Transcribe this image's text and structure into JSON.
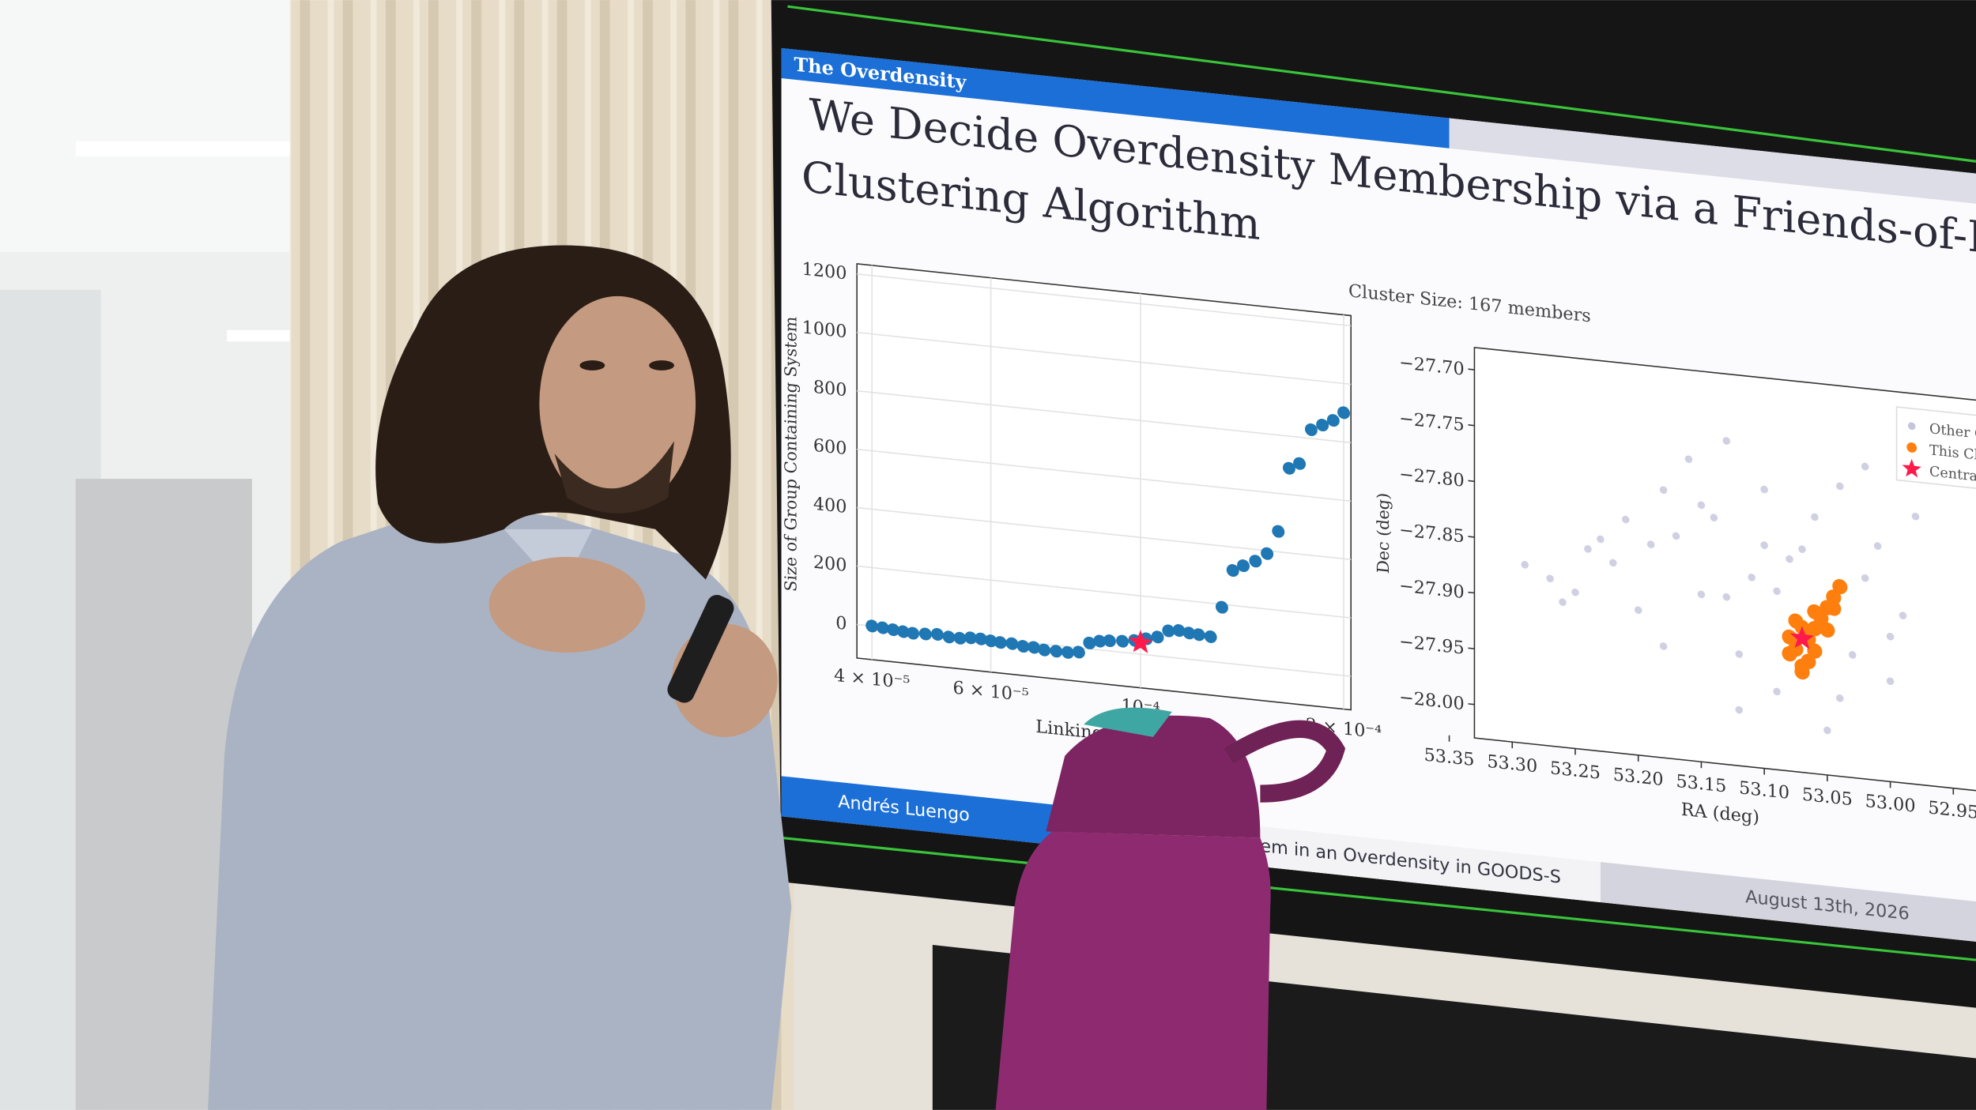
{
  "slide": {
    "header": "The Overdensity",
    "title_lines": [
      "We Decide Overdensity Membership via a Friends-of-Fri",
      "Clustering Algorithm"
    ],
    "footer_author": "Andrés Luengo",
    "footer_title": "em in an Overdensity in GOODS-S",
    "footer_date": "August 13th, 2026"
  },
  "left_plot": {
    "type": "scatter",
    "y_label": "Size of Group Containing System",
    "x_label": "Linking Length",
    "xscale": "log",
    "xlim": [
      3.8e-05,
      0.000205
    ],
    "ylim": [
      -115,
      1235
    ],
    "xticks": [
      {
        "value": 4e-05,
        "label": "4 × 10⁻⁵"
      },
      {
        "value": 6e-05,
        "label": "6 × 10⁻⁵"
      },
      {
        "value": 0.0001,
        "label": "10⁻⁴"
      },
      {
        "value": 0.0002,
        "label": "2 × 10⁻⁴"
      }
    ],
    "yticks": [
      0,
      200,
      400,
      600,
      800,
      1000,
      1200
    ],
    "grid": true,
    "color": "#1f77b4",
    "x": [
      4e-05,
      4.15e-05,
      4.3e-05,
      4.45e-05,
      4.6e-05,
      4.8e-05,
      5e-05,
      5.2e-05,
      5.4e-05,
      5.6e-05,
      5.8e-05,
      6e-05,
      6.2e-05,
      6.45e-05,
      6.7e-05,
      6.95e-05,
      7.2e-05,
      7.5e-05,
      7.8e-05,
      8.1e-05,
      8.4e-05,
      8.7e-05,
      9e-05,
      9.4e-05,
      9.8e-05,
      0.000102,
      0.000106,
      0.00011,
      0.000114,
      0.000118,
      0.000122,
      0.000127,
      0.000132,
      0.000137,
      0.000142,
      0.000148,
      0.000154,
      0.00016,
      0.000166,
      0.000172,
      0.000179,
      0.000186,
      0.000193,
      0.0002
    ],
    "values": [
      0,
      -2,
      -5,
      -8,
      -10,
      -8,
      -5,
      -10,
      -10,
      -5,
      -5,
      -8,
      -10,
      -10,
      -15,
      -15,
      -20,
      -20,
      -20,
      -15,
      20,
      30,
      35,
      38,
      45,
      55,
      65,
      90,
      95,
      90,
      88,
      85,
      190,
      320,
      340,
      360,
      390,
      470,
      690,
      710,
      830,
      850,
      870,
      900
    ],
    "highlight": {
      "x": 0.0001,
      "value": 40,
      "color": "#ff1a4b"
    }
  },
  "right_plot": {
    "type": "scatter",
    "annotation": "Cluster Size: 167 members",
    "x_label": "RA (deg)",
    "y_label": "Dec (deg)",
    "xlim": [
      53.33,
      52.89
    ],
    "ylim": [
      -27.68,
      -28.03
    ],
    "xticks": [
      53.35,
      {
        "value": 53.3,
        "label": "53.30"
      },
      53.25,
      {
        "value": 53.2,
        "label": "53.20"
      },
      53.15,
      {
        "value": 53.1,
        "label": "53.10"
      },
      53.05,
      {
        "value": 53.0,
        "label": "53.00"
      },
      52.95
    ],
    "yticks": [
      {
        "value": -27.7,
        "label": "−27.70"
      },
      {
        "value": -27.75,
        "label": "−27.75"
      },
      {
        "value": -27.8,
        "label": "−27.80"
      },
      {
        "value": -27.85,
        "label": "−27.85"
      },
      {
        "value": -27.9,
        "label": "−27.90"
      },
      {
        "value": -27.95,
        "label": "−27.95"
      },
      {
        "value": -28.0,
        "label": "−28.00"
      }
    ],
    "legend": "upper right",
    "series": [
      {
        "name": "Other Clusters",
        "color": "#c4c4dc",
        "x": [
          53.29,
          53.27,
          53.25,
          53.24,
          53.22,
          53.21,
          53.2,
          53.19,
          53.18,
          53.17,
          53.16,
          53.15,
          53.14,
          53.13,
          53.12,
          53.11,
          53.1,
          53.09,
          53.08,
          53.06,
          53.05,
          53.04,
          53.03,
          53.02,
          53.01,
          53.0,
          52.99,
          52.98,
          53.26,
          53.23,
          53.18,
          53.15,
          53.12,
          53.09,
          53.07,
          53.04,
          53.02,
          53.0,
          53.13,
          53.1
        ],
        "values": [
          -27.87,
          -27.88,
          -27.89,
          -27.85,
          -27.86,
          -27.82,
          -27.9,
          -27.84,
          -27.79,
          -27.83,
          -27.76,
          -27.88,
          -27.81,
          -27.74,
          -27.93,
          -27.86,
          -27.78,
          -27.96,
          -27.84,
          -27.8,
          -27.99,
          -27.77,
          -27.92,
          -27.85,
          -27.82,
          -27.94,
          -27.88,
          -27.79,
          -27.9,
          -27.84,
          -27.93,
          -27.8,
          -27.98,
          -27.87,
          -27.83,
          -27.96,
          -27.75,
          -27.9,
          -27.88,
          -27.83
        ]
      },
      {
        "name": "This Cluster",
        "color": "#ff7f0e",
        "x": [
          53.08,
          53.075,
          53.07,
          53.065,
          53.06,
          53.055,
          53.05,
          53.045,
          53.04,
          53.07,
          53.065,
          53.06,
          53.075,
          53.08,
          53.05,
          53.045,
          53.06,
          53.07
        ],
        "values": [
          -27.91,
          -27.92,
          -27.9,
          -27.93,
          -27.9,
          -27.89,
          -27.88,
          -27.87,
          -27.86,
          -27.94,
          -27.91,
          -27.92,
          -27.895,
          -27.925,
          -27.9,
          -27.88,
          -27.885,
          -27.935
        ]
      },
      {
        "name": "Central System",
        "color": "#ff1a4b",
        "x": [
          53.07
        ],
        "values": [
          -27.91
        ]
      }
    ]
  }
}
